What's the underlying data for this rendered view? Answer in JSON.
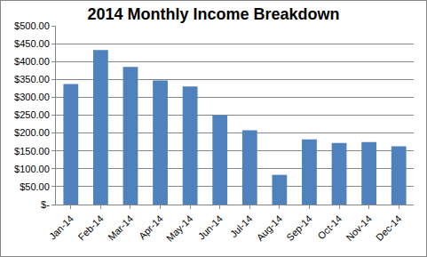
{
  "chart_data": {
    "type": "bar",
    "title": "2014 Monthly Income Breakdown",
    "categories": [
      "Jan-14",
      "Feb-14",
      "Mar-14",
      "Apr-14",
      "May-14",
      "Jun-14",
      "Jul-14",
      "Aug-14",
      "Sep-14",
      "Oct-14",
      "Nov-14",
      "Dec-14"
    ],
    "values": [
      337,
      432,
      385,
      347,
      330,
      250,
      208,
      83,
      182,
      172,
      175,
      163
    ],
    "color": "#4f81bd",
    "ylim": [
      0,
      500
    ],
    "yticks": [
      {
        "value": 0,
        "label": "$-"
      },
      {
        "value": 50,
        "label": "$50.00"
      },
      {
        "value": 100,
        "label": "$100.00"
      },
      {
        "value": 150,
        "label": "$150.00"
      },
      {
        "value": 200,
        "label": "$200.00"
      },
      {
        "value": 250,
        "label": "$250.00"
      },
      {
        "value": 300,
        "label": "$300.00"
      },
      {
        "value": 350,
        "label": "$350.00"
      },
      {
        "value": 400,
        "label": "$400.00"
      },
      {
        "value": 450,
        "label": "$450.00"
      },
      {
        "value": 500,
        "label": "$500.00"
      }
    ],
    "grid": true
  }
}
